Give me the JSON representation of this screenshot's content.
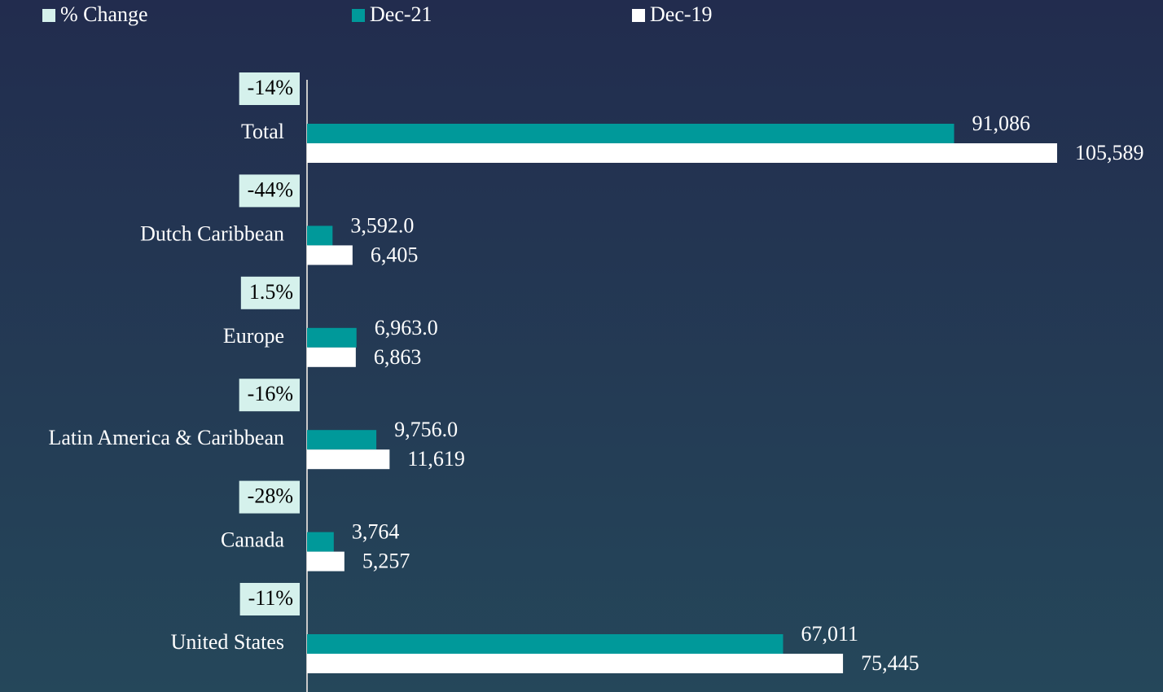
{
  "chart_data": {
    "type": "bar",
    "orientation": "horizontal",
    "categories": [
      "Total",
      "Dutch Caribbean",
      "Europe",
      "Latin America & Caribbean",
      "Canada",
      "United States"
    ],
    "series": [
      {
        "name": "% Change",
        "color": "#d5f1ec",
        "role": "label-box",
        "values": [
          -14,
          -44,
          1.5,
          -16,
          -28,
          -11
        ],
        "value_labels": [
          "-14%",
          "-44%",
          "1.5%",
          "-16%",
          "-28%",
          "-11%"
        ]
      },
      {
        "name": "Dec-21",
        "color": "#00999a",
        "values": [
          91086,
          3592,
          6963,
          9756,
          3764,
          67011
        ],
        "value_labels": [
          "91,086",
          "3,592.0",
          "6,963.0",
          "9,756.0",
          "3,764",
          "67,011"
        ]
      },
      {
        "name": "Dec-19",
        "color": "#ffffff",
        "values": [
          105589,
          6405,
          6863,
          11619,
          5257,
          75445
        ],
        "value_labels": [
          "105,589",
          "6,405",
          "6,863",
          "11,619",
          "5,257",
          "75,445"
        ]
      }
    ],
    "xlim": [
      0,
      110000
    ]
  }
}
